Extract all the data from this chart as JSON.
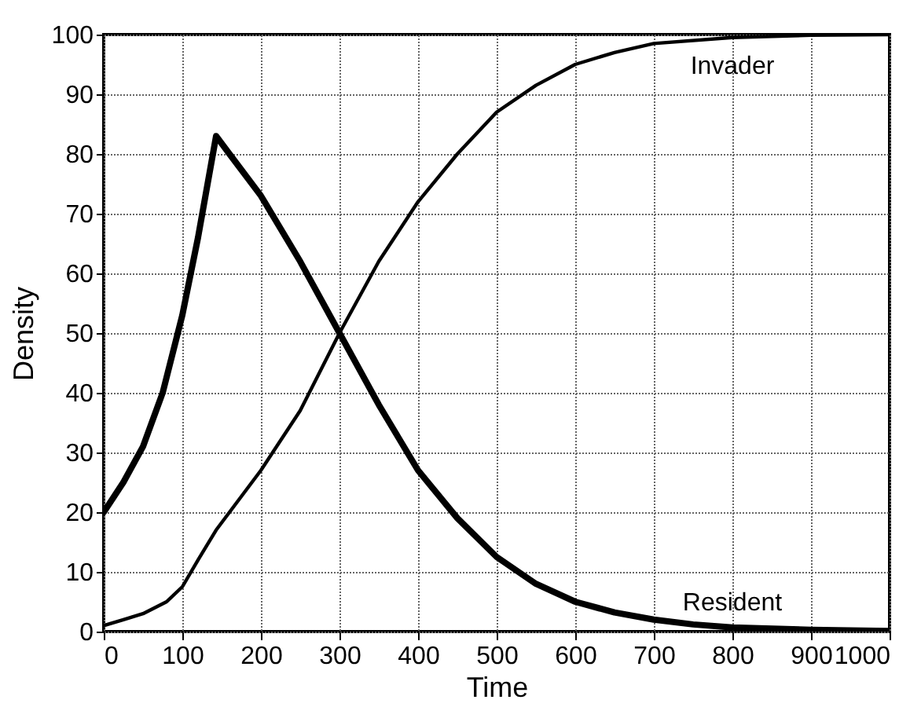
{
  "chart_data": {
    "type": "line",
    "xlabel": "Time",
    "ylabel": "Density",
    "xlim": [
      0,
      1000
    ],
    "ylim": [
      0,
      100
    ],
    "xticks": [
      0,
      100,
      200,
      300,
      400,
      500,
      600,
      700,
      800,
      900,
      1000
    ],
    "yticks": [
      0,
      10,
      20,
      30,
      40,
      50,
      60,
      70,
      80,
      90,
      100
    ],
    "grid": true,
    "marker": "none",
    "line_style": "solid",
    "series": [
      {
        "name": "Resident",
        "color": "#000000",
        "x": [
          0,
          25,
          50,
          75,
          100,
          120,
          143,
          160,
          200,
          250,
          300,
          350,
          400,
          450,
          500,
          550,
          600,
          650,
          700,
          750,
          800,
          900,
          1000
        ],
        "values": [
          20,
          25,
          31,
          40,
          53,
          66,
          83,
          80,
          73,
          62,
          50,
          38,
          27,
          19,
          12.5,
          8,
          5,
          3.2,
          2,
          1.2,
          0.7,
          0.3,
          0.1
        ]
      },
      {
        "name": "Invader",
        "color": "#000000",
        "x": [
          0,
          25,
          50,
          80,
          100,
          120,
          143,
          200,
          250,
          300,
          350,
          400,
          450,
          500,
          550,
          600,
          650,
          700,
          800,
          900,
          1000
        ],
        "values": [
          1,
          2,
          3,
          5,
          7.5,
          12,
          17,
          27,
          37,
          50,
          62,
          72,
          80,
          87,
          91.5,
          95,
          97,
          98.5,
          99.5,
          99.9,
          100
        ]
      }
    ]
  }
}
